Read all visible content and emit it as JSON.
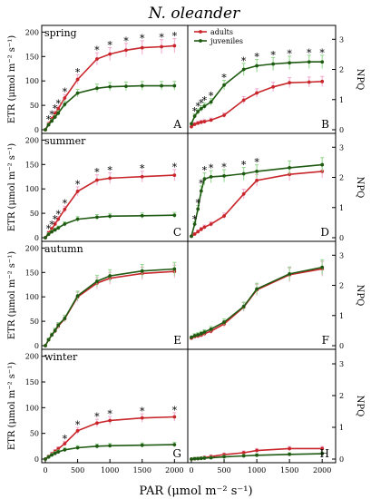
{
  "figure_title": "N. oleander",
  "x_axis_title": "PAR (μmol m⁻² s⁻¹)",
  "x_ticks": [
    "0",
    "500",
    "1000",
    "1500",
    "2000"
  ],
  "etr_label": "ETR (μmol m⁻² s⁻¹)",
  "npq_label": "NPQ",
  "etr_ticks": [
    "0",
    "50",
    "100",
    "150",
    "200"
  ],
  "npq_ticks": [
    "0",
    "1",
    "2",
    "3"
  ],
  "legend": {
    "adults": "adults",
    "juveniles": "juveniles"
  },
  "colors": {
    "adults": "#c8262b",
    "juveniles": "#1f5a12",
    "sd_adults": "#f2a6cc",
    "sd_juveniles": "#8fd58a"
  },
  "chart_data": [
    {
      "type": "line",
      "panel": "A",
      "season": "spring",
      "metric": "ETR",
      "x": [
        0,
        50,
        100,
        150,
        200,
        300,
        500,
        800,
        1000,
        1250,
        1500,
        1800,
        2000
      ],
      "xlim": [
        0,
        2150
      ],
      "ylim": [
        0,
        210
      ],
      "series": [
        {
          "name": "adults",
          "values": [
            0,
            12,
            22,
            33,
            43,
            65,
            103,
            145,
            155,
            163,
            168,
            170,
            172
          ]
        },
        {
          "name": "juveniles",
          "values": [
            0,
            10,
            18,
            26,
            34,
            52,
            75,
            85,
            88,
            89,
            90,
            90,
            90
          ]
        }
      ],
      "significance": [
        50,
        100,
        150,
        200,
        300,
        500,
        800,
        1000,
        1250,
        1500,
        1800,
        2000
      ]
    },
    {
      "type": "line",
      "panel": "B",
      "season": "spring",
      "metric": "NPQ",
      "x": [
        0,
        50,
        100,
        150,
        200,
        300,
        500,
        800,
        1000,
        1250,
        1500,
        1800,
        2000
      ],
      "xlim": [
        0,
        2150
      ],
      "ylim": [
        0,
        3.4
      ],
      "series": [
        {
          "name": "adults",
          "values": [
            0.1,
            0.18,
            0.22,
            0.25,
            0.27,
            0.32,
            0.48,
            0.98,
            1.22,
            1.42,
            1.56,
            1.58,
            1.6
          ]
        },
        {
          "name": "juveniles",
          "values": [
            0.2,
            0.45,
            0.6,
            0.7,
            0.78,
            0.92,
            1.48,
            2.0,
            2.12,
            2.18,
            2.22,
            2.25,
            2.25
          ]
        }
      ],
      "significance": [
        50,
        100,
        150,
        200,
        300,
        500,
        800,
        1000,
        1250,
        1500,
        1800,
        2000
      ]
    },
    {
      "type": "line",
      "panel": "C",
      "season": "summer",
      "metric": "ETR",
      "x": [
        0,
        50,
        100,
        150,
        200,
        300,
        500,
        800,
        1000,
        1500,
        2000
      ],
      "xlim": [
        0,
        2150
      ],
      "ylim": [
        0,
        210
      ],
      "series": [
        {
          "name": "adults",
          "values": [
            0,
            10,
            18,
            28,
            38,
            58,
            95,
            118,
            122,
            125,
            128
          ]
        },
        {
          "name": "juveniles",
          "values": [
            0,
            7,
            12,
            16,
            20,
            28,
            38,
            42,
            44,
            45,
            46
          ]
        }
      ],
      "significance": [
        50,
        100,
        150,
        200,
        300,
        500,
        800,
        1000,
        1500,
        2000
      ]
    },
    {
      "type": "line",
      "panel": "D",
      "season": "summer",
      "metric": "NPQ",
      "x": [
        0,
        50,
        100,
        150,
        200,
        300,
        500,
        800,
        1000,
        1500,
        2000
      ],
      "xlim": [
        0,
        2150
      ],
      "ylim": [
        0,
        3.4
      ],
      "series": [
        {
          "name": "adults",
          "values": [
            0.05,
            0.12,
            0.2,
            0.28,
            0.35,
            0.45,
            0.72,
            1.45,
            1.9,
            2.1,
            2.2
          ]
        },
        {
          "name": "juveniles",
          "values": [
            0.05,
            0.45,
            0.95,
            1.55,
            1.95,
            2.02,
            2.05,
            2.12,
            2.2,
            2.32,
            2.42
          ]
        }
      ],
      "significance": [
        50,
        100,
        150,
        200,
        300,
        500,
        800,
        1000
      ]
    },
    {
      "type": "line",
      "panel": "E",
      "season": "autumn",
      "metric": "ETR",
      "x": [
        0,
        50,
        100,
        150,
        200,
        300,
        500,
        800,
        1000,
        1500,
        2000
      ],
      "xlim": [
        0,
        2150
      ],
      "ylim": [
        0,
        210
      ],
      "series": [
        {
          "name": "adults",
          "values": [
            0,
            12,
            22,
            30,
            40,
            55,
            100,
            128,
            138,
            148,
            152
          ]
        },
        {
          "name": "juveniles",
          "values": [
            0,
            12,
            22,
            31,
            42,
            56,
            102,
            132,
            143,
            153,
            157
          ]
        }
      ],
      "significance": []
    },
    {
      "type": "line",
      "panel": "F",
      "season": "autumn",
      "metric": "NPQ",
      "x": [
        0,
        50,
        100,
        150,
        200,
        300,
        500,
        800,
        1000,
        1500,
        2000
      ],
      "xlim": [
        0,
        2150
      ],
      "ylim": [
        0,
        3.4
      ],
      "series": [
        {
          "name": "adults",
          "values": [
            0.25,
            0.3,
            0.32,
            0.35,
            0.4,
            0.48,
            0.72,
            1.28,
            1.85,
            2.35,
            2.55
          ]
        },
        {
          "name": "juveniles",
          "values": [
            0.28,
            0.33,
            0.36,
            0.4,
            0.45,
            0.55,
            0.78,
            1.3,
            1.88,
            2.38,
            2.6
          ]
        }
      ],
      "significance": []
    },
    {
      "type": "line",
      "panel": "G",
      "season": "winter",
      "metric": "ETR",
      "x": [
        0,
        50,
        100,
        150,
        200,
        300,
        500,
        800,
        1000,
        1500,
        2000
      ],
      "xlim": [
        0,
        2150
      ],
      "ylim": [
        0,
        210
      ],
      "series": [
        {
          "name": "adults",
          "values": [
            0,
            5,
            10,
            15,
            20,
            30,
            55,
            70,
            75,
            80,
            82
          ]
        },
        {
          "name": "juveniles",
          "values": [
            0,
            4,
            8,
            11,
            14,
            18,
            22,
            25,
            26,
            27,
            28
          ]
        }
      ],
      "significance": [
        300,
        500,
        800,
        1000,
        1500,
        2000
      ]
    },
    {
      "type": "line",
      "panel": "H",
      "season": "winter",
      "metric": "NPQ",
      "x": [
        0,
        50,
        100,
        150,
        200,
        300,
        500,
        800,
        1000,
        1500,
        2000
      ],
      "xlim": [
        0,
        2150
      ],
      "ylim": [
        0,
        3.4
      ],
      "series": [
        {
          "name": "adults",
          "values": [
            0,
            0.01,
            0.02,
            0.03,
            0.05,
            0.08,
            0.14,
            0.2,
            0.27,
            0.33,
            0.33
          ]
        },
        {
          "name": "juveniles",
          "values": [
            0,
            0.01,
            0.015,
            0.02,
            0.03,
            0.04,
            0.07,
            0.1,
            0.12,
            0.15,
            0.17
          ]
        }
      ],
      "significance": []
    }
  ]
}
